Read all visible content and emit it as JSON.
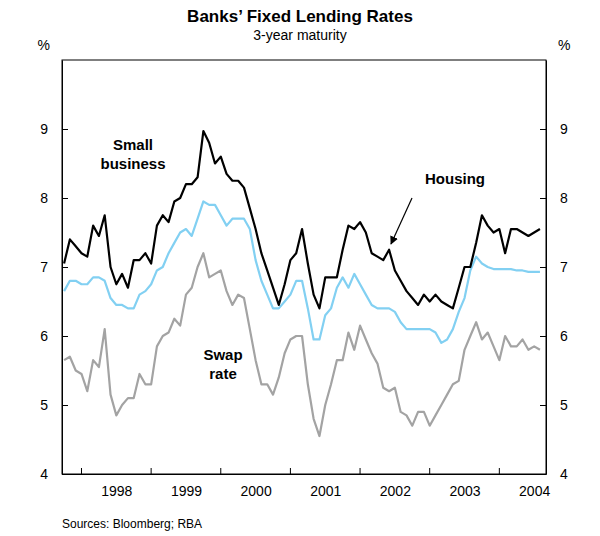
{
  "chart_data": {
    "type": "line",
    "title": "Banks’ Fixed Lending Rates",
    "subtitle": "3-year maturity",
    "y_label": "%",
    "source": "Sources: Bloomberg; RBA",
    "grid": false,
    "xlim": [
      1997.72,
      2004.67
    ],
    "xticks": [
      {
        "value": 1998.5,
        "label": "1998"
      },
      {
        "value": 1999.5,
        "label": "1999"
      },
      {
        "value": 2000.5,
        "label": "2000"
      },
      {
        "value": 2001.5,
        "label": "2001"
      },
      {
        "value": 2002.5,
        "label": "2002"
      },
      {
        "value": 2003.5,
        "label": "2003"
      },
      {
        "value": 2004.5,
        "label": "2004"
      }
    ],
    "ylim": [
      4,
      10
    ],
    "yticks": [
      4,
      5,
      6,
      7,
      8,
      9
    ],
    "x": [
      1997.75,
      1997.833,
      1997.917,
      1998.0,
      1998.083,
      1998.167,
      1998.25,
      1998.333,
      1998.417,
      1998.5,
      1998.583,
      1998.667,
      1998.75,
      1998.833,
      1998.917,
      1999.0,
      1999.083,
      1999.167,
      1999.25,
      1999.333,
      1999.417,
      1999.5,
      1999.583,
      1999.667,
      1999.75,
      1999.833,
      1999.917,
      2000.0,
      2000.083,
      2000.167,
      2000.25,
      2000.333,
      2000.417,
      2000.5,
      2000.583,
      2000.667,
      2000.75,
      2000.833,
      2000.917,
      2001.0,
      2001.083,
      2001.167,
      2001.25,
      2001.333,
      2001.417,
      2001.5,
      2001.583,
      2001.667,
      2001.75,
      2001.833,
      2001.917,
      2002.0,
      2002.083,
      2002.167,
      2002.25,
      2002.333,
      2002.417,
      2002.5,
      2002.583,
      2002.667,
      2002.75,
      2002.833,
      2002.917,
      2003.0,
      2003.083,
      2003.167,
      2003.25,
      2003.333,
      2003.417,
      2003.5,
      2003.583,
      2003.667,
      2003.75,
      2003.833,
      2003.917,
      2004.0,
      2004.083,
      2004.167,
      2004.25,
      2004.333,
      2004.417,
      2004.5,
      2004.583
    ],
    "series": [
      {
        "name": "Small business",
        "color": "#000000",
        "values": [
          7.05,
          7.4,
          7.3,
          7.2,
          7.15,
          7.6,
          7.45,
          7.75,
          7.0,
          6.75,
          6.9,
          6.7,
          7.1,
          7.1,
          7.2,
          7.05,
          7.6,
          7.75,
          7.65,
          7.95,
          8.0,
          8.2,
          8.2,
          8.3,
          8.97,
          8.8,
          8.5,
          8.6,
          8.35,
          8.25,
          8.25,
          8.15,
          7.85,
          7.55,
          7.2,
          6.95,
          6.7,
          6.45,
          6.75,
          7.1,
          7.2,
          7.55,
          7.05,
          6.6,
          6.4,
          6.85,
          6.85,
          6.85,
          7.25,
          7.6,
          7.55,
          7.65,
          7.5,
          7.2,
          7.15,
          7.1,
          7.25,
          6.95,
          6.8,
          6.65,
          6.55,
          6.45,
          6.6,
          6.5,
          6.6,
          6.5,
          6.45,
          6.4,
          6.7,
          7.0,
          7.0,
          7.35,
          7.75,
          7.6,
          7.5,
          7.55,
          7.2,
          7.55,
          7.55,
          7.5,
          7.45,
          7.5,
          7.55
        ]
      },
      {
        "name": "Housing",
        "color": "#82d0f2",
        "values": [
          6.65,
          6.8,
          6.8,
          6.75,
          6.75,
          6.85,
          6.85,
          6.8,
          6.55,
          6.45,
          6.45,
          6.4,
          6.4,
          6.6,
          6.65,
          6.75,
          6.95,
          7.0,
          7.2,
          7.35,
          7.5,
          7.55,
          7.45,
          7.7,
          7.95,
          7.9,
          7.9,
          7.75,
          7.6,
          7.7,
          7.7,
          7.7,
          7.55,
          7.1,
          6.8,
          6.6,
          6.4,
          6.4,
          6.5,
          6.6,
          6.8,
          6.8,
          6.4,
          5.95,
          5.95,
          6.3,
          6.4,
          6.7,
          6.85,
          6.7,
          6.9,
          6.75,
          6.6,
          6.45,
          6.4,
          6.4,
          6.4,
          6.35,
          6.2,
          6.1,
          6.1,
          6.1,
          6.1,
          6.1,
          6.05,
          5.9,
          5.95,
          6.1,
          6.35,
          6.55,
          6.95,
          7.15,
          7.05,
          7.0,
          6.97,
          6.97,
          6.97,
          6.97,
          6.95,
          6.95,
          6.93,
          6.93,
          6.93
        ]
      },
      {
        "name": "Swap rate",
        "color": "#a3a3a3",
        "values": [
          5.65,
          5.7,
          5.5,
          5.45,
          5.2,
          5.65,
          5.55,
          6.1,
          5.15,
          4.85,
          5.0,
          5.1,
          5.1,
          5.45,
          5.3,
          5.3,
          5.85,
          6.0,
          6.05,
          6.25,
          6.15,
          6.6,
          6.7,
          7.0,
          7.2,
          6.85,
          6.9,
          6.95,
          6.65,
          6.45,
          6.6,
          6.55,
          6.1,
          5.65,
          5.3,
          5.3,
          5.15,
          5.4,
          5.75,
          5.95,
          6.0,
          6.0,
          5.3,
          4.8,
          4.55,
          5.0,
          5.3,
          5.65,
          5.65,
          6.05,
          5.8,
          6.15,
          5.95,
          5.75,
          5.6,
          5.25,
          5.2,
          5.25,
          4.9,
          4.85,
          4.7,
          4.9,
          4.9,
          4.7,
          4.85,
          5.0,
          5.15,
          5.3,
          5.35,
          5.8,
          6.0,
          6.2,
          5.95,
          6.05,
          5.85,
          5.65,
          6.0,
          5.85,
          5.85,
          5.95,
          5.8,
          5.85,
          5.8
        ]
      }
    ]
  }
}
